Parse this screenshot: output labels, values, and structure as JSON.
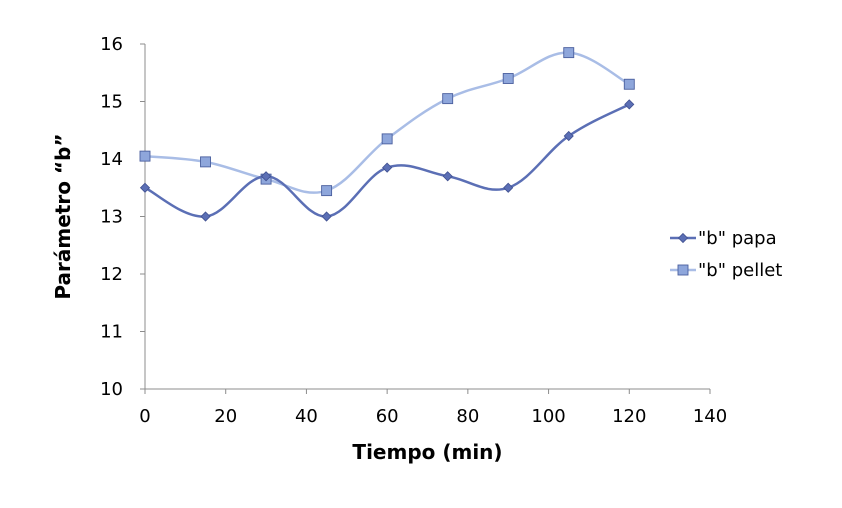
{
  "chart_data": {
    "type": "line",
    "title": "",
    "xlabel": "Tiempo (min)",
    "ylabel": "Parámetro “b”",
    "xlim": [
      0,
      140
    ],
    "ylim": [
      10,
      16
    ],
    "xticks": [
      "0",
      "20",
      "40",
      "60",
      "80",
      "100",
      "120",
      "140"
    ],
    "yticks": [
      "10",
      "11",
      "12",
      "13",
      "14",
      "15",
      "16"
    ],
    "grid": false,
    "legend_position": "right",
    "series": [
      {
        "name": "\"b\" papa",
        "marker": "diamond",
        "color": "#5b6fb5",
        "x": [
          0,
          15,
          30,
          45,
          60,
          75,
          90,
          105,
          120
        ],
        "y": [
          13.5,
          13.0,
          13.7,
          13.0,
          13.85,
          13.7,
          13.5,
          14.4,
          14.95
        ]
      },
      {
        "name": "\"b\" pellet",
        "marker": "square",
        "color": "#a9bde6",
        "marker_fill": "#8ea6db",
        "x": [
          0,
          15,
          30,
          45,
          60,
          75,
          90,
          105,
          120
        ],
        "y": [
          14.05,
          13.95,
          13.65,
          13.45,
          14.35,
          15.05,
          15.4,
          15.85,
          15.3
        ]
      }
    ]
  }
}
